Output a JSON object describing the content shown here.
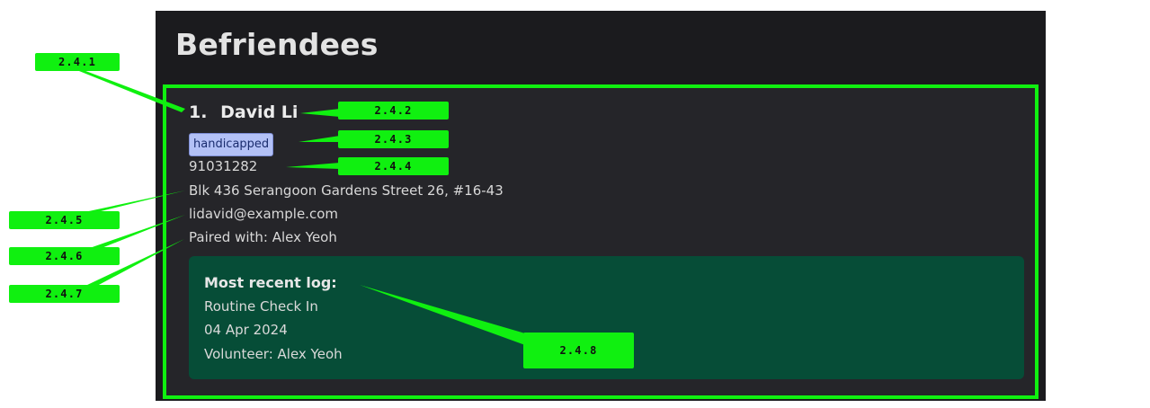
{
  "panel": {
    "title": "Befriendees"
  },
  "card": {
    "index": "1.",
    "name": "David Li",
    "tag": "handicapped",
    "phone": "91031282",
    "address": "Blk 436 Serangoon Gardens Street 26, #16-43",
    "email": "lidavid@example.com",
    "paired": "Paired with: Alex Yeoh",
    "log": {
      "heading": "Most recent log:",
      "title": "Routine Check In",
      "date": "04 Apr 2024",
      "volunteer": "Volunteer: Alex Yeoh"
    }
  },
  "annotations": {
    "c241": "2.4.1",
    "c242": "2.4.2",
    "c243": "2.4.3",
    "c244": "2.4.4",
    "c245": "2.4.5",
    "c246": "2.4.6",
    "c247": "2.4.7",
    "c248": "2.4.8"
  },
  "colors": {
    "highlight": "#10f010",
    "panel_bg": "#1b1b1e",
    "card_bg": "#252529",
    "log_bg": "#064d37",
    "tag_bg": "#b3c1f6"
  }
}
